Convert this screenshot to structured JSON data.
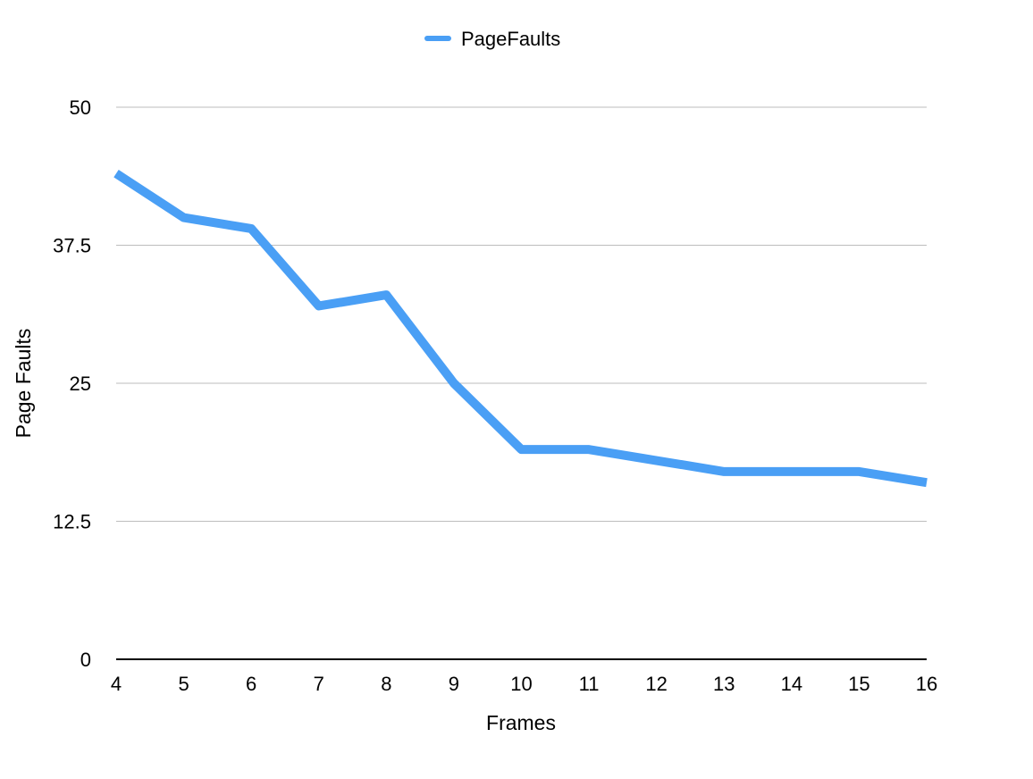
{
  "chart_data": {
    "type": "line",
    "xlabel": "Frames",
    "ylabel": "Page Faults",
    "x": [
      4,
      5,
      6,
      7,
      8,
      9,
      10,
      11,
      12,
      13,
      14,
      15,
      16
    ],
    "series": [
      {
        "name": "PageFaults",
        "color": "#4A9FF5",
        "values": [
          44,
          40,
          39,
          32,
          33,
          25,
          19,
          19,
          18,
          17,
          17,
          17,
          16
        ]
      }
    ],
    "xlim": [
      4,
      16
    ],
    "ylim": [
      0,
      50
    ],
    "yticks": [
      "0",
      "12.5",
      "25",
      "37.5",
      "50"
    ],
    "xticks": [
      "4",
      "5",
      "6",
      "7",
      "8",
      "9",
      "10",
      "11",
      "12",
      "13",
      "14",
      "15",
      "16"
    ],
    "grid": true,
    "legend_position": "top-center"
  }
}
